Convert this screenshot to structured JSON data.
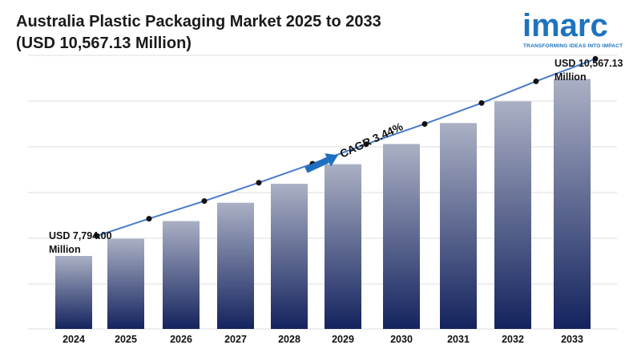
{
  "header": {
    "title_line1": "Australia Plastic Packaging Market 2025 to 2033",
    "title_line2": "(USD 10,567.13 Million)"
  },
  "logo": {
    "word": "imarc",
    "tagline": "TRANSFORMING IDEAS INTO IMPACT"
  },
  "colors": {
    "bar_top": "#aab0c4",
    "bar_bottom": "#14235e",
    "line": "#4a7bc8",
    "arrow": "#1e6fbf",
    "grid": "#dddddd"
  },
  "chart_data": {
    "type": "bar",
    "title": "Australia Plastic Packaging Market 2025 to 2033",
    "subtitle": "(USD 10,567.13 Million)",
    "categories": [
      "2024",
      "2025",
      "2026",
      "2027",
      "2028",
      "2029",
      "2030",
      "2031",
      "2032",
      "2033"
    ],
    "values": [
      7794.0,
      8063,
      8340,
      8627,
      8924,
      9231,
      9548,
      9876,
      10216,
      10567.13
    ],
    "trend_line": true,
    "ylim": [
      6650,
      11050
    ],
    "grid": true,
    "annotations": {
      "start_label_line1": "USD 7,794.00",
      "start_label_line2": "Million",
      "end_label_line1": "USD 10,567.13",
      "end_label_line2": "Million",
      "cagr": "CAGR 3.44%"
    }
  }
}
